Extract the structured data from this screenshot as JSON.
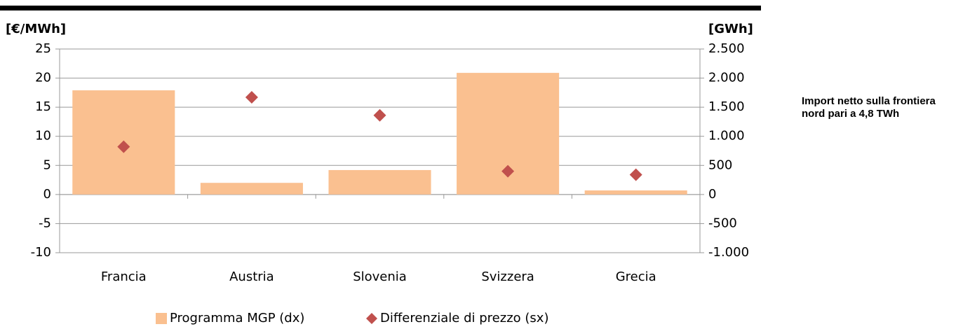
{
  "chart_data": {
    "type": "combo",
    "y_label": "[€/MWh]",
    "y2_label": "[GWh]",
    "annotation": "Import netto sulla frontiera nord pari a 4,8 TWh",
    "categories": [
      "Francia",
      "Austria",
      "Slovenia",
      "Svizzera",
      "Grecia"
    ],
    "series": [
      {
        "name": "Programma MGP (dx)",
        "type": "bar",
        "axis": "y2",
        "color": "#fac090",
        "values": [
          1790,
          200,
          420,
          2090,
          70
        ]
      },
      {
        "name": "Differenziale di prezzo (sx)",
        "type": "scatter",
        "axis": "y",
        "color": "#c0504d",
        "values": [
          8.2,
          16.7,
          13.6,
          4.0,
          3.4
        ]
      }
    ],
    "ylim": [
      -10,
      25
    ],
    "yticks": [
      -10,
      -5,
      0,
      5,
      10,
      15,
      20,
      25
    ],
    "y2lim": [
      -1000,
      2500
    ],
    "y2ticks": [
      {
        "value": -1000,
        "label": "-1.000"
      },
      -500,
      0,
      500,
      {
        "value": 1000,
        "label": "1.000"
      },
      {
        "value": 1500,
        "label": "1.500"
      },
      {
        "value": 2000,
        "label": "2.000"
      },
      {
        "value": 2500,
        "label": "2.500"
      }
    ],
    "grid": true
  }
}
